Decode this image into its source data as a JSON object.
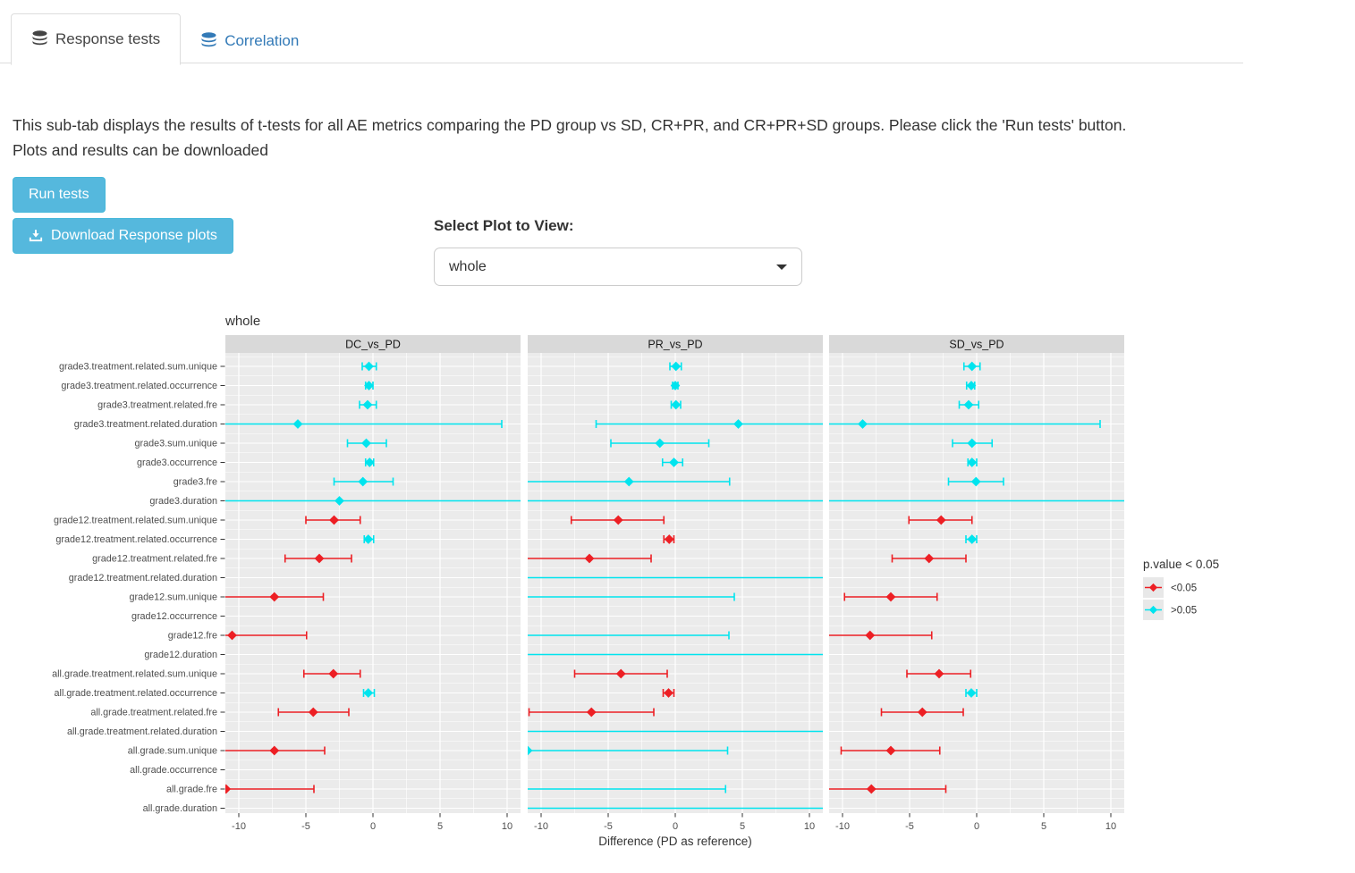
{
  "tabs": [
    {
      "label": "Response tests",
      "active": true
    },
    {
      "label": "Correlation",
      "active": false
    }
  ],
  "description": {
    "line1": "This sub-tab displays the results of t-tests for all AE metrics comparing the PD group vs SD, CR+PR, and CR+PR+SD groups. Please click the 'Run tests' button.",
    "line2": "Plots and results can be downloaded"
  },
  "buttons": {
    "run_label": "Run tests",
    "download_label": "Download Response plots"
  },
  "select": {
    "label": "Select Plot to View:",
    "value": "whole"
  },
  "chart_data": {
    "type": "scatter",
    "subtype": "forest-plot-with-error-bars",
    "title": "whole",
    "xlabel": "Difference (PD as reference)",
    "xlim": [
      -11,
      11
    ],
    "xticks": [
      -10,
      -5,
      0,
      5,
      10
    ],
    "grid": "on",
    "facets": [
      "DC_vs_PD",
      "PR_vs_PD",
      "SD_vs_PD"
    ],
    "legend": {
      "title": "p.value < 0.05",
      "position": "right",
      "items": [
        {
          "label": "<0.05",
          "color": "#ED1F24"
        },
        {
          "label": ">0.05",
          "color": "#00E4EE"
        }
      ]
    },
    "colors": {
      "panel_bg": "#EBEBEB",
      "strip_bg": "#D9D9D9",
      "grid": "#FFFFFF",
      "axis_text": "#4D4D4D",
      "text": "#333333"
    },
    "categories": [
      "grade3.treatment.related.sum.unique",
      "grade3.treatment.related.occurrence",
      "grade3.treatment.related.fre",
      "grade3.treatment.related.duration",
      "grade3.sum.unique",
      "grade3.occurrence",
      "grade3.fre",
      "grade3.duration",
      "grade12.treatment.related.sum.unique",
      "grade12.treatment.related.occurrence",
      "grade12.treatment.related.fre",
      "grade12.treatment.related.duration",
      "grade12.sum.unique",
      "grade12.occurrence",
      "grade12.fre",
      "grade12.duration",
      "all.grade.treatment.related.sum.unique",
      "all.grade.treatment.related.occurrence",
      "all.grade.treatment.related.fre",
      "all.grade.treatment.related.duration",
      "all.grade.sum.unique",
      "all.grade.occurrence",
      "all.grade.fre",
      "all.grade.duration"
    ],
    "series": [
      {
        "name": "DC_vs_PD",
        "points": [
          {
            "v": -0.3,
            "lo": -0.8,
            "hi": 0.25,
            "s": 0
          },
          {
            "v": -0.3,
            "lo": -0.55,
            "hi": 0.0,
            "s": 0
          },
          {
            "v": -0.4,
            "lo": -1.0,
            "hi": 0.25,
            "s": 0
          },
          {
            "v": -5.6,
            "lo": -11.5,
            "hi": 9.6,
            "s": 0
          },
          {
            "v": -0.5,
            "lo": -1.9,
            "hi": 1.0,
            "s": 0
          },
          {
            "v": -0.25,
            "lo": -0.55,
            "hi": 0.05,
            "s": 0
          },
          {
            "v": -0.75,
            "lo": -2.9,
            "hi": 1.5,
            "s": 0
          },
          {
            "v": -2.5,
            "lo": -11.5,
            "hi": 11.5,
            "s": 0
          },
          {
            "v": -2.9,
            "lo": -5.0,
            "hi": -0.95,
            "s": 1
          },
          {
            "v": -0.35,
            "lo": -0.65,
            "hi": 0.05,
            "s": 0
          },
          {
            "v": -4.0,
            "lo": -6.55,
            "hi": -1.6,
            "s": 1
          },
          null,
          {
            "v": -7.35,
            "lo": -11.5,
            "hi": -3.7,
            "s": 1
          },
          null,
          {
            "v": -10.5,
            "lo": -11.5,
            "hi": -4.95,
            "s": 1
          },
          null,
          {
            "v": -2.95,
            "lo": -5.15,
            "hi": -0.95,
            "s": 1
          },
          {
            "v": -0.35,
            "lo": -0.7,
            "hi": 0.1,
            "s": 0
          },
          {
            "v": -4.45,
            "lo": -7.05,
            "hi": -1.8,
            "s": 1
          },
          null,
          {
            "v": -7.35,
            "lo": -11.5,
            "hi": -3.6,
            "s": 1
          },
          null,
          {
            "v": -10.95,
            "lo": -11.5,
            "hi": -4.4,
            "s": 1
          },
          null
        ]
      },
      {
        "name": "PR_vs_PD",
        "points": [
          {
            "v": 0.05,
            "lo": -0.4,
            "hi": 0.45,
            "s": 0
          },
          {
            "v": 0.0,
            "lo": -0.2,
            "hi": 0.2,
            "s": 0
          },
          {
            "v": 0.05,
            "lo": -0.3,
            "hi": 0.4,
            "s": 0
          },
          {
            "v": 4.7,
            "lo": -5.9,
            "hi": 11.5,
            "s": 0
          },
          {
            "v": -1.15,
            "lo": -4.8,
            "hi": 2.5,
            "s": 0
          },
          {
            "v": -0.1,
            "lo": -0.95,
            "hi": 0.55,
            "s": 0
          },
          {
            "v": -3.45,
            "lo": -11.5,
            "hi": 4.05,
            "s": 0
          },
          {
            "v": null,
            "lo": -11.5,
            "hi": 11.5,
            "s": 0
          },
          {
            "v": -4.25,
            "lo": -7.75,
            "hi": -0.85,
            "s": 1
          },
          {
            "v": -0.45,
            "lo": -0.85,
            "hi": -0.1,
            "s": 1
          },
          {
            "v": -6.4,
            "lo": -11.5,
            "hi": -1.8,
            "s": 1
          },
          {
            "v": null,
            "lo": -11.5,
            "hi": 11.5,
            "s": 0
          },
          {
            "v": null,
            "lo": -11.5,
            "hi": 4.4,
            "s": 0
          },
          null,
          {
            "v": null,
            "lo": -11.5,
            "hi": 4.0,
            "s": 0
          },
          {
            "v": null,
            "lo": -11.5,
            "hi": 11.5,
            "s": 0
          },
          {
            "v": -4.05,
            "lo": -7.5,
            "hi": -0.6,
            "s": 1
          },
          {
            "v": -0.5,
            "lo": -0.9,
            "hi": -0.1,
            "s": 1
          },
          {
            "v": -6.25,
            "lo": -10.9,
            "hi": -1.6,
            "s": 1
          },
          {
            "v": null,
            "lo": -11.5,
            "hi": 11.5,
            "s": 0
          },
          {
            "v": -11.0,
            "lo": -11.5,
            "hi": 3.9,
            "s": 0
          },
          null,
          {
            "v": null,
            "lo": -11.5,
            "hi": 3.75,
            "s": 0
          },
          {
            "v": null,
            "lo": -11.5,
            "hi": 11.5,
            "s": 0
          }
        ]
      },
      {
        "name": "SD_vs_PD",
        "points": [
          {
            "v": -0.35,
            "lo": -0.95,
            "hi": 0.25,
            "s": 0
          },
          {
            "v": -0.4,
            "lo": -0.75,
            "hi": -0.15,
            "s": 0
          },
          {
            "v": -0.6,
            "lo": -1.3,
            "hi": 0.15,
            "s": 0
          },
          {
            "v": -8.5,
            "lo": -11.5,
            "hi": 9.2,
            "s": 0
          },
          {
            "v": -0.35,
            "lo": -1.8,
            "hi": 1.15,
            "s": 0
          },
          {
            "v": -0.35,
            "lo": -0.65,
            "hi": 0.0,
            "s": 0
          },
          {
            "v": -0.05,
            "lo": -2.1,
            "hi": 2.0,
            "s": 0
          },
          {
            "v": null,
            "lo": -11.5,
            "hi": 11.5,
            "s": 0
          },
          {
            "v": -2.65,
            "lo": -5.05,
            "hi": -0.35,
            "s": 1
          },
          {
            "v": -0.35,
            "lo": -0.8,
            "hi": 0.0,
            "s": 0
          },
          {
            "v": -3.55,
            "lo": -6.3,
            "hi": -0.8,
            "s": 1
          },
          null,
          {
            "v": -6.4,
            "lo": -9.85,
            "hi": -2.95,
            "s": 1
          },
          null,
          {
            "v": -7.95,
            "lo": -11.5,
            "hi": -3.35,
            "s": 1
          },
          null,
          {
            "v": -2.8,
            "lo": -5.2,
            "hi": -0.45,
            "s": 1
          },
          {
            "v": -0.4,
            "lo": -0.8,
            "hi": 0.0,
            "s": 0
          },
          {
            "v": -4.05,
            "lo": -7.1,
            "hi": -1.0,
            "s": 1
          },
          null,
          {
            "v": -6.4,
            "lo": -10.1,
            "hi": -2.75,
            "s": 1
          },
          null,
          {
            "v": -7.85,
            "lo": -11.5,
            "hi": -2.3,
            "s": 1
          },
          null
        ]
      }
    ]
  }
}
